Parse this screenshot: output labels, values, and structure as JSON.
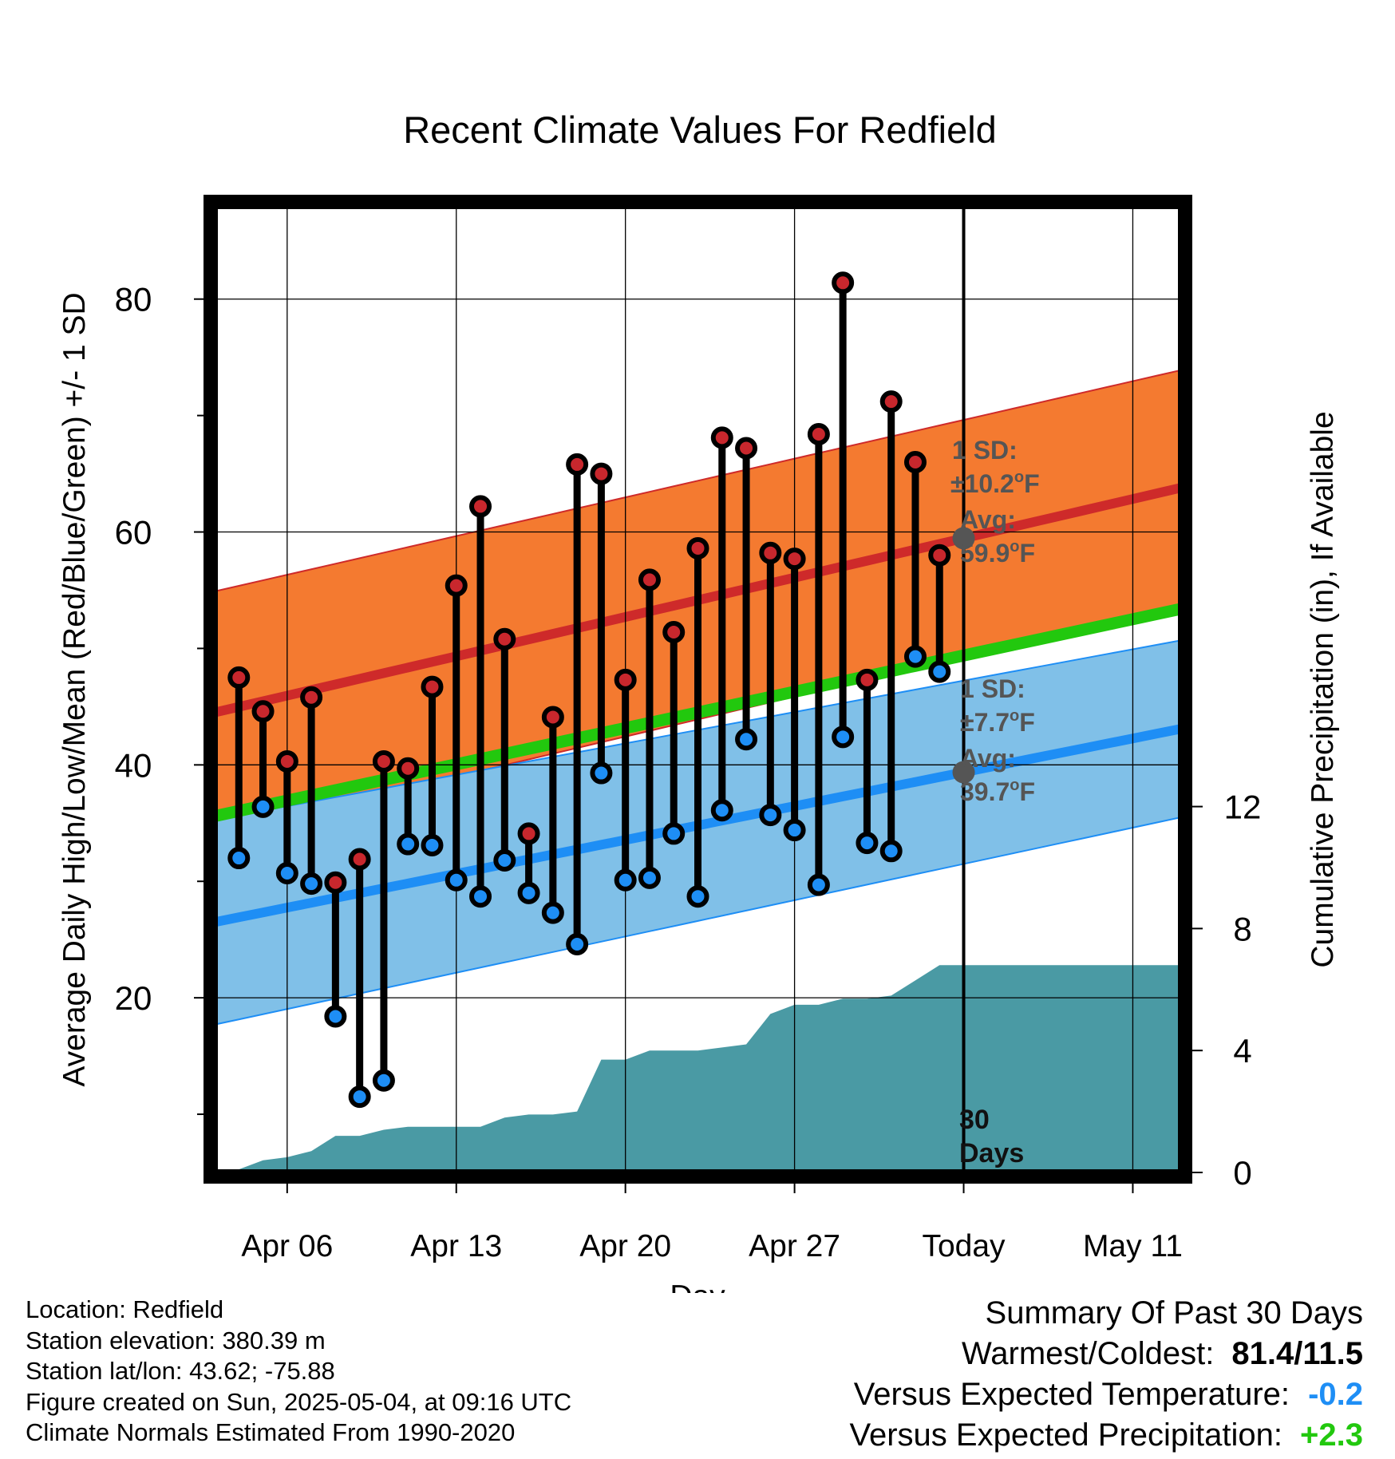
{
  "chart_data": {
    "type": "line",
    "title": "Recent Climate Values For Redfield",
    "xlabel": "Day",
    "ylabel_left": "Average Daily High/Low/Mean (Red/Blue/Green) +/- 1 SD",
    "ylabel_right": "Cumulative Precipitation (in), If Available",
    "x_start": "Apr 03",
    "x_end": "May 13",
    "today_index": 31,
    "xticks": [
      {
        "index": 3,
        "label": "Apr 06"
      },
      {
        "index": 10,
        "label": "Apr 13"
      },
      {
        "index": 17,
        "label": "Apr 20"
      },
      {
        "index": 24,
        "label": "Apr 27"
      },
      {
        "index": 31,
        "label": "Today"
      },
      {
        "index": 38,
        "label": "May 11"
      }
    ],
    "ylim": [
      5,
      88
    ],
    "yticks": [
      20,
      40,
      60,
      80
    ],
    "y_minor_ticks": [
      10,
      30,
      50,
      70
    ],
    "precip_ylim": [
      0,
      31.7
    ],
    "precip_ticks": [
      0,
      4,
      8,
      12
    ],
    "grid": true,
    "days": [
      "Apr 04",
      "Apr 05",
      "Apr 06",
      "Apr 07",
      "Apr 08",
      "Apr 09",
      "Apr 10",
      "Apr 11",
      "Apr 12",
      "Apr 13",
      "Apr 14",
      "Apr 15",
      "Apr 16",
      "Apr 17",
      "Apr 18",
      "Apr 19",
      "Apr 20",
      "Apr 21",
      "Apr 22",
      "Apr 23",
      "Apr 24",
      "Apr 25",
      "Apr 26",
      "Apr 27",
      "Apr 28",
      "Apr 29",
      "Apr 30",
      "May 01",
      "May 02",
      "May 03"
    ],
    "series": [
      {
        "name": "High",
        "color": "#c8272d",
        "values": [
          47.5,
          44.6,
          40.3,
          45.8,
          29.9,
          31.9,
          40.3,
          39.7,
          46.7,
          55.4,
          62.2,
          50.8,
          34.1,
          44.1,
          65.8,
          65.0,
          47.3,
          55.9,
          51.4,
          58.6,
          68.1,
          67.2,
          58.2,
          57.7,
          68.4,
          81.4,
          47.3,
          71.2,
          66.0,
          58.0
        ]
      },
      {
        "name": "Low",
        "color": "#1e8ef5",
        "values": [
          32.0,
          36.4,
          30.7,
          29.8,
          18.4,
          11.5,
          12.9,
          33.2,
          33.1,
          30.1,
          28.7,
          31.8,
          29.0,
          27.3,
          24.6,
          39.3,
          30.1,
          30.3,
          34.1,
          28.7,
          36.1,
          42.2,
          35.7,
          34.4,
          29.7,
          42.4,
          33.3,
          32.6,
          49.3,
          48.0
        ]
      }
    ],
    "normal_high": {
      "start": 44.5,
      "end": 63.8,
      "sd_band_today": "±10.2°F",
      "avg_today": "59.9°F",
      "color": "#ce2a2a",
      "band_color": "#f47a30"
    },
    "normal_low": {
      "start": 26.5,
      "end": 43.1,
      "sd_band_today": "±7.7°F",
      "avg_today": "39.7°F",
      "color": "#1e8ef5",
      "band_color": "#80c0e8"
    },
    "normal_mean": {
      "start": 35.6,
      "end": 53.4,
      "color": "#22c80e"
    },
    "cumulative_precip": {
      "color": "#4a9aa4",
      "values": [
        0.1,
        0.4,
        0.5,
        0.7,
        1.2,
        1.2,
        1.4,
        1.5,
        1.5,
        1.5,
        1.5,
        1.8,
        1.9,
        1.9,
        2.0,
        3.7,
        3.7,
        4.0,
        4.0,
        4.0,
        4.1,
        4.2,
        5.2,
        5.5,
        5.5,
        5.7,
        5.7,
        5.8,
        6.3,
        6.8
      ]
    },
    "annotations": {
      "high_sd_label": "1 SD:",
      "high_sd_value": "±10.2",
      "high_avg_label": "Avg:",
      "high_avg_value": "59.9",
      "low_sd_label": "1 SD:",
      "low_sd_value": "±7.7",
      "low_avg_label": "Avg:",
      "low_avg_value": "39.7",
      "degree_unit": "o",
      "f_unit": "F",
      "days_number": "30",
      "days_word": "Days"
    }
  },
  "info": {
    "location": "Location: Redfield",
    "elevation": "Station elevation: 380.39 m",
    "latlon": "Station lat/lon: 43.62; -75.88",
    "created": "Figure created on Sun, 2025-05-04, at 09:16 UTC",
    "normals": "Climate Normals Estimated From 1990-2020"
  },
  "summary": {
    "title": "Summary Of Past 30 Days",
    "warm_cold_label": "Warmest/Coldest:",
    "warm_cold_value": "81.4/11.5",
    "temp_label": "Versus Expected Temperature:",
    "temp_value": "-0.2",
    "temp_color": "#1e8ef5",
    "precip_label": "Versus Expected Precipitation:",
    "precip_value": "+2.3",
    "precip_color": "#22c80e"
  }
}
